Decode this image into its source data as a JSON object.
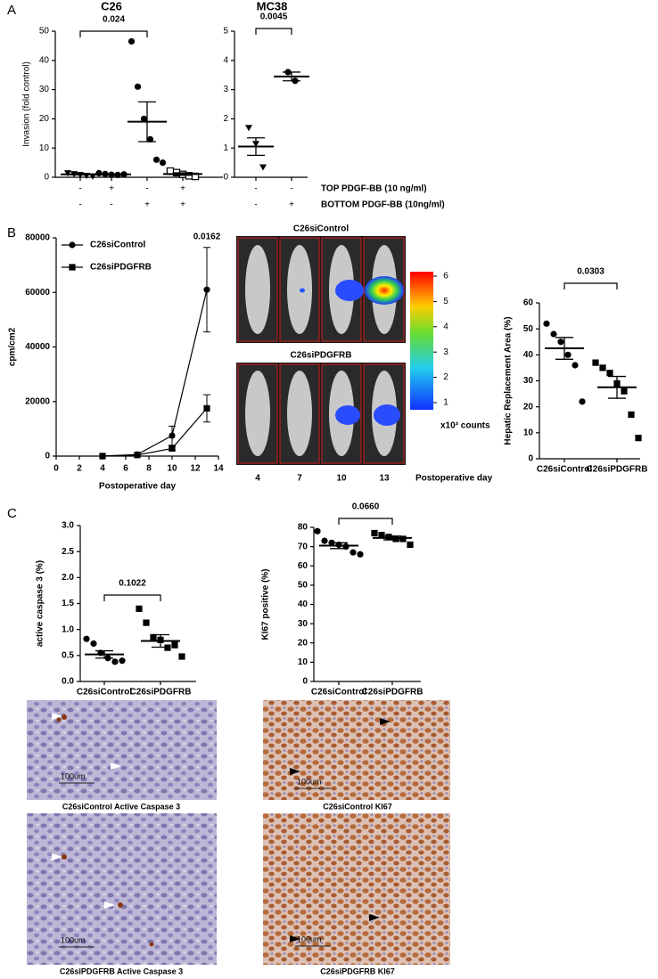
{
  "panel_labels": [
    "A",
    "B",
    "C"
  ],
  "chart_data": [
    {
      "type": "strip",
      "title": "C26",
      "y_label": "Invasion (fold control)",
      "ylim": [
        0,
        50
      ],
      "yticks": [
        0,
        10,
        20,
        30,
        40,
        50
      ],
      "annotation": "0.024",
      "color": "#000000",
      "groups": [
        {
          "marker": "triangle",
          "values": [
            1.5,
            1.2,
            0.9,
            0.6,
            0.4
          ],
          "mean": 1.0,
          "sem": 0.2
        },
        {
          "marker": "circle",
          "values": [
            1.4,
            1.1,
            0.9,
            0.8,
            1.0
          ],
          "mean": 1.0,
          "sem": 0.1
        },
        {
          "marker": "circle",
          "values": [
            46.5,
            31,
            20,
            13,
            6,
            5
          ],
          "mean": 19,
          "sem": 6.8
        },
        {
          "marker": "open-square",
          "values": [
            2.1,
            1.6,
            1.0,
            0.5,
            0.3
          ],
          "mean": 1.1,
          "sem": 0.4
        }
      ]
    },
    {
      "type": "strip",
      "title": "MC38",
      "ylim": [
        0,
        5
      ],
      "yticks": [
        0,
        1,
        2,
        3,
        4,
        5
      ],
      "annotation": "0.0045",
      "color": "#000000",
      "groups": [
        {
          "marker": "triangle",
          "values": [
            1.7,
            1.15,
            0.35
          ],
          "mean": 1.05,
          "sem": 0.3
        },
        {
          "marker": "circle",
          "values": [
            3.6,
            3.3
          ],
          "mean": 3.45,
          "sem": 0.15
        }
      ]
    },
    {
      "type": "line",
      "x_label": "Postoperative day",
      "y_label": "cpm/cm2",
      "x": [
        4,
        7,
        10,
        13
      ],
      "xlim": [
        0,
        14
      ],
      "xticks": [
        0,
        2,
        4,
        6,
        8,
        10,
        12,
        14
      ],
      "ylim": [
        0,
        80000
      ],
      "yticks": [
        0,
        20000,
        40000,
        60000,
        80000
      ],
      "annotation": "0.0162",
      "series": [
        {
          "name": "C26siControl",
          "color": "#000000",
          "marker": "circle",
          "values": [
            0,
            600,
            7500,
            61000
          ],
          "errors": [
            null,
            null,
            3500,
            15500
          ]
        },
        {
          "name": "C26siPDGFRB",
          "color": "#000000",
          "marker": "square",
          "values": [
            0,
            400,
            2800,
            17500
          ],
          "errors": [
            null,
            null,
            700,
            5000
          ]
        }
      ]
    },
    {
      "type": "strip",
      "y_label": "Hepatic Replacement Area (%)",
      "categories": [
        "C26siControl",
        "C26siPDGFRB"
      ],
      "ylim": [
        0,
        60
      ],
      "yticks": [
        0,
        10,
        20,
        30,
        40,
        50,
        60
      ],
      "annotation": "0.0303",
      "color": "#000000",
      "groups": [
        {
          "marker": "circle",
          "values": [
            52,
            48,
            45,
            40,
            36,
            22
          ],
          "mean": 42.5,
          "sem": 4.2
        },
        {
          "marker": "square",
          "values": [
            37,
            35,
            33,
            29,
            26,
            17,
            8
          ],
          "mean": 27.5,
          "sem": 4.2
        }
      ]
    },
    {
      "type": "strip",
      "y_label": "active caspase 3 (%)",
      "categories": [
        "C26siControl",
        "C26siPDGFRB"
      ],
      "ylim": [
        0,
        3
      ],
      "yticks": [
        {
          "value": 0,
          "label": "0.0"
        },
        0.5,
        {
          "value": 1,
          "label": "1.0"
        },
        1.5,
        {
          "value": 2,
          "label": "2.0"
        },
        2.5,
        {
          "value": 3,
          "label": "3.0"
        }
      ],
      "annotation": "0.1022",
      "color": "#000000",
      "groups": [
        {
          "marker": "circle",
          "values": [
            0.82,
            0.73,
            0.55,
            0.45,
            0.38,
            0.4
          ],
          "mean": 0.52,
          "sem": 0.07
        },
        {
          "marker": "square",
          "values": [
            1.4,
            1.13,
            0.85,
            0.8,
            0.65,
            0.7,
            0.48
          ],
          "mean": 0.78,
          "sem": 0.12
        }
      ]
    },
    {
      "type": "strip",
      "y_label": "KI67 positive (%)",
      "categories": [
        "C26siControl",
        "C26siPDGFRB"
      ],
      "ylim": [
        0,
        80
      ],
      "yticks": [
        0,
        10,
        20,
        30,
        40,
        50,
        60,
        70,
        80
      ],
      "annotation": "0.0660",
      "color": "#000000",
      "groups": [
        {
          "marker": "circle",
          "values": [
            78,
            73,
            72,
            71,
            70,
            67,
            66
          ],
          "mean": 70.5,
          "sem": 1.5
        },
        {
          "marker": "square",
          "values": [
            77,
            76,
            75,
            74,
            74,
            71
          ],
          "mean": 74.5,
          "sem": 1.0
        }
      ]
    }
  ],
  "conditions": [
    {
      "label": "TOP PDGF-BB (10 ng/ml)",
      "signs": [
        "-",
        "+",
        "-",
        "+",
        "-",
        "-"
      ]
    },
    {
      "label": "BOTTOM PDGF-BB (10ng/ml)",
      "signs": [
        "-",
        "-",
        "+",
        "+",
        "-",
        "+"
      ]
    }
  ],
  "imaging": {
    "groups": [
      "C26siControl",
      "C26siPDGFRB"
    ],
    "days": [
      4,
      7,
      10,
      13
    ],
    "x_label": "Postoperative day",
    "colorbar_ticks": [
      1,
      2,
      3,
      4,
      5,
      6
    ],
    "colorbar_label": "x10³ counts"
  },
  "histology": [
    {
      "caption": "C26siControl Active Caspase 3",
      "scale_bar": "100um"
    },
    {
      "caption": "C26siControl KI67",
      "scale_bar": "100um"
    },
    {
      "caption": "C26siPDGFRB Active Caspase 3",
      "scale_bar": "100um"
    },
    {
      "caption": "C26siPDGFRB KI67",
      "scale_bar": "100um"
    }
  ]
}
